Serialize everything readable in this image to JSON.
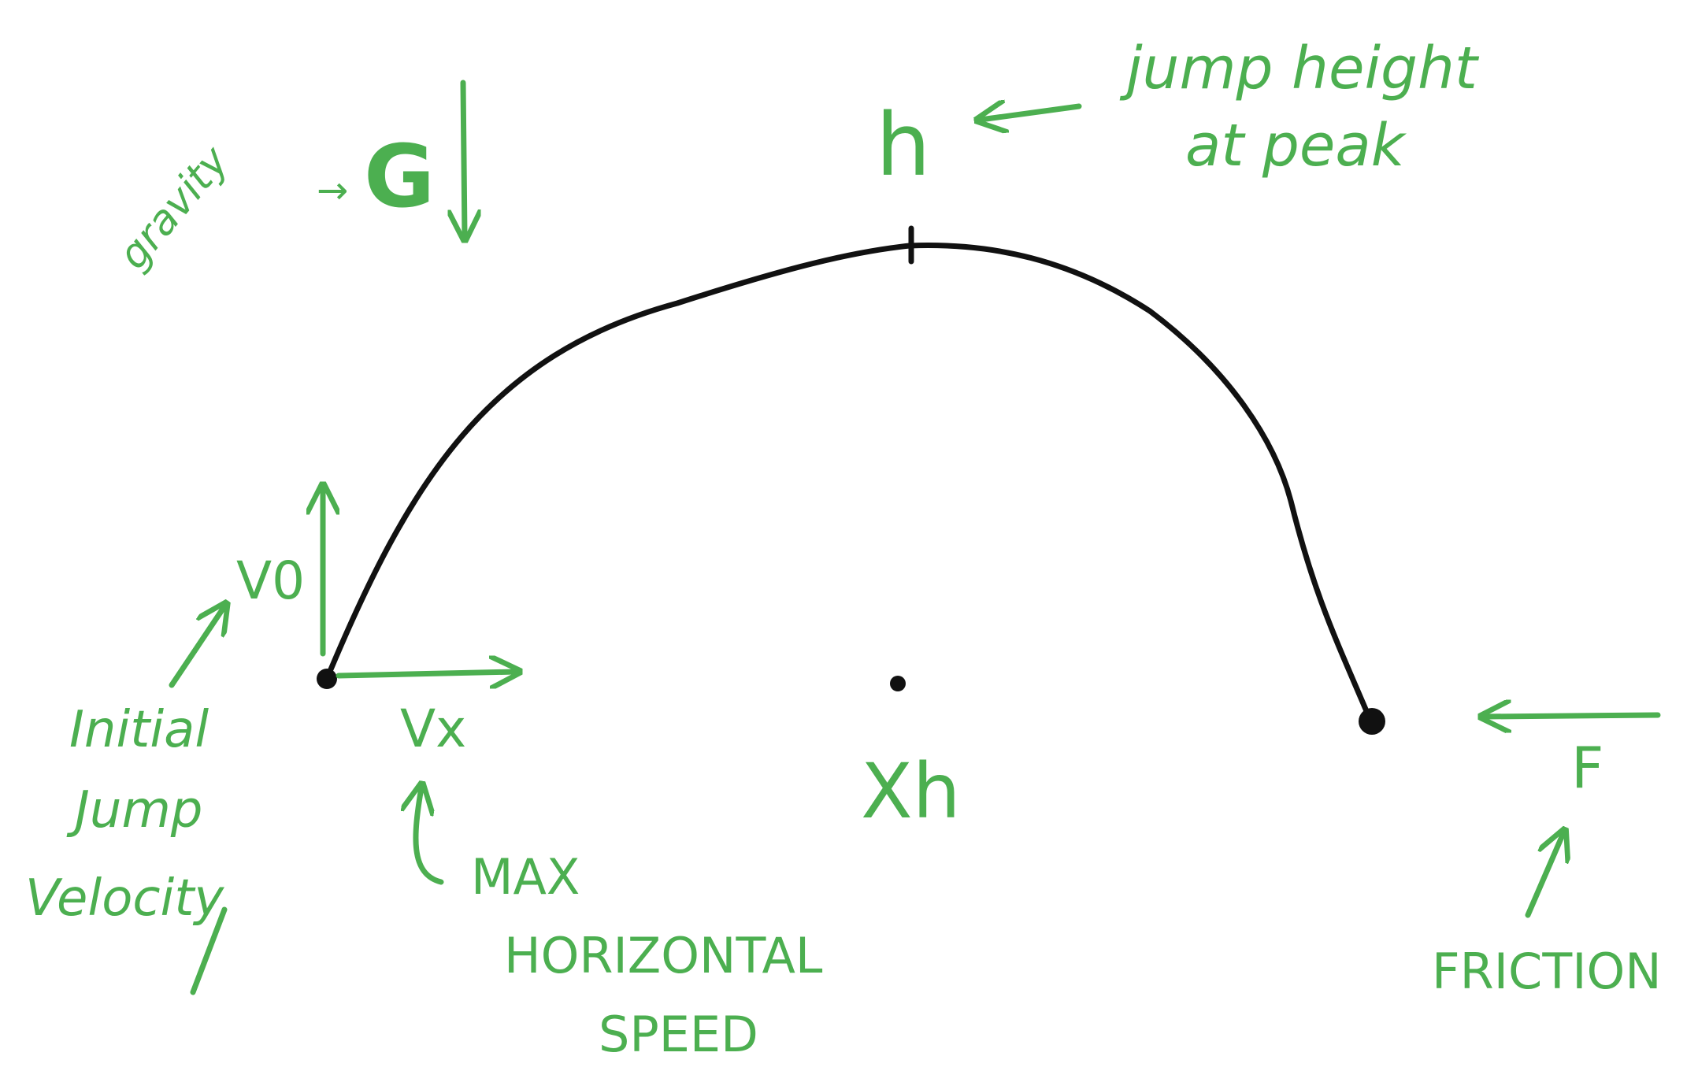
{
  "colors": {
    "annotation": "#4caf50",
    "curve": "#111111",
    "background": "#ffffff"
  },
  "labels": {
    "gravity": "gravity",
    "gravity_arrow": "→",
    "gravity_symbol": "G",
    "h": "h",
    "jump_height_line1": "jump height",
    "jump_height_line2": "at peak",
    "v0": "V0",
    "initial_line1": "Initial",
    "initial_line2": "Jump",
    "initial_line3": "Velocity",
    "vx": "Vx",
    "max_line1": "MAX",
    "max_line2": "HORIZONTAL",
    "max_line3": "SPEED",
    "xh": "Xh",
    "f": "F",
    "friction": "FRICTION"
  }
}
